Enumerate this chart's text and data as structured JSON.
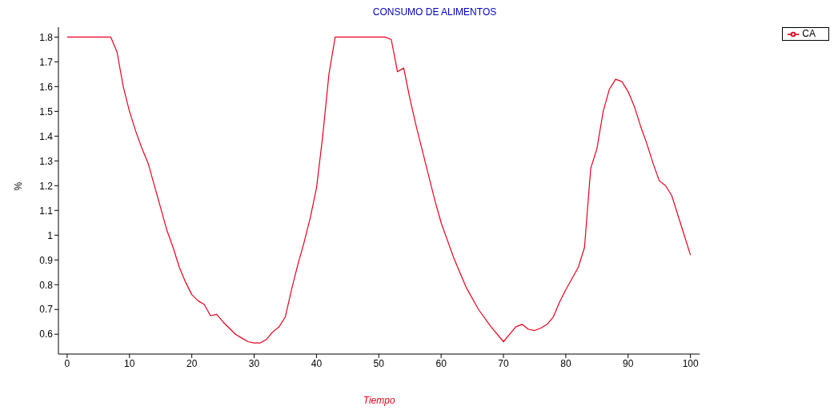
{
  "chart_data": {
    "type": "line",
    "title": "CONSUMO DE ALIMENTOS",
    "xlabel": "Tiempo",
    "ylabel": "%",
    "x": [
      0,
      7,
      8,
      9,
      10,
      11,
      12,
      13,
      14,
      15,
      16,
      17,
      18,
      19,
      20,
      21,
      22,
      23,
      24,
      25,
      26,
      27,
      28,
      29,
      30,
      31,
      32,
      33,
      34,
      35,
      36,
      37,
      38,
      39,
      40,
      41,
      42,
      43,
      51,
      52,
      53,
      54,
      55,
      56,
      57,
      58,
      59,
      60,
      62,
      64,
      66,
      68,
      70,
      71,
      72,
      73,
      74,
      75,
      76,
      77,
      78,
      79,
      80,
      82,
      83,
      84,
      85,
      86,
      87,
      88,
      89,
      90,
      91,
      92,
      93,
      94,
      95,
      96,
      97,
      98,
      99,
      100
    ],
    "series": [
      {
        "name": "CA",
        "color": "#e8001c",
        "values": [
          1.8,
          1.8,
          1.74,
          1.6,
          1.5,
          1.42,
          1.35,
          1.29,
          1.2,
          1.11,
          1.02,
          0.95,
          0.87,
          0.81,
          0.76,
          0.735,
          0.72,
          0.675,
          0.68,
          0.65,
          0.625,
          0.6,
          0.585,
          0.57,
          0.565,
          0.565,
          0.58,
          0.61,
          0.63,
          0.67,
          0.78,
          0.88,
          0.97,
          1.07,
          1.19,
          1.4,
          1.65,
          1.8,
          1.8,
          1.79,
          1.66,
          1.675,
          1.55,
          1.44,
          1.34,
          1.24,
          1.14,
          1.05,
          0.91,
          0.79,
          0.7,
          0.63,
          0.57,
          0.6,
          0.63,
          0.64,
          0.62,
          0.615,
          0.625,
          0.64,
          0.67,
          0.73,
          0.78,
          0.87,
          0.95,
          1.27,
          1.35,
          1.5,
          1.59,
          1.63,
          1.62,
          1.58,
          1.52,
          1.44,
          1.37,
          1.29,
          1.22,
          1.2,
          1.16,
          1.08,
          1.0,
          0.92
        ]
      }
    ],
    "xlim": [
      -1.4,
      101.5
    ],
    "xticks": [
      0,
      10,
      20,
      30,
      40,
      50,
      60,
      70,
      80,
      90,
      100
    ],
    "ylim": [
      0.52,
      1.84
    ],
    "yticks": [
      0.6,
      0.7,
      0.8,
      0.9,
      {
        "value": 1,
        "label": "1"
      },
      1.1,
      1.2,
      1.3,
      1.4,
      1.5,
      1.6,
      1.7,
      1.8
    ],
    "grid": false,
    "legend": "top right",
    "marker": "none",
    "line_style": "solid"
  }
}
